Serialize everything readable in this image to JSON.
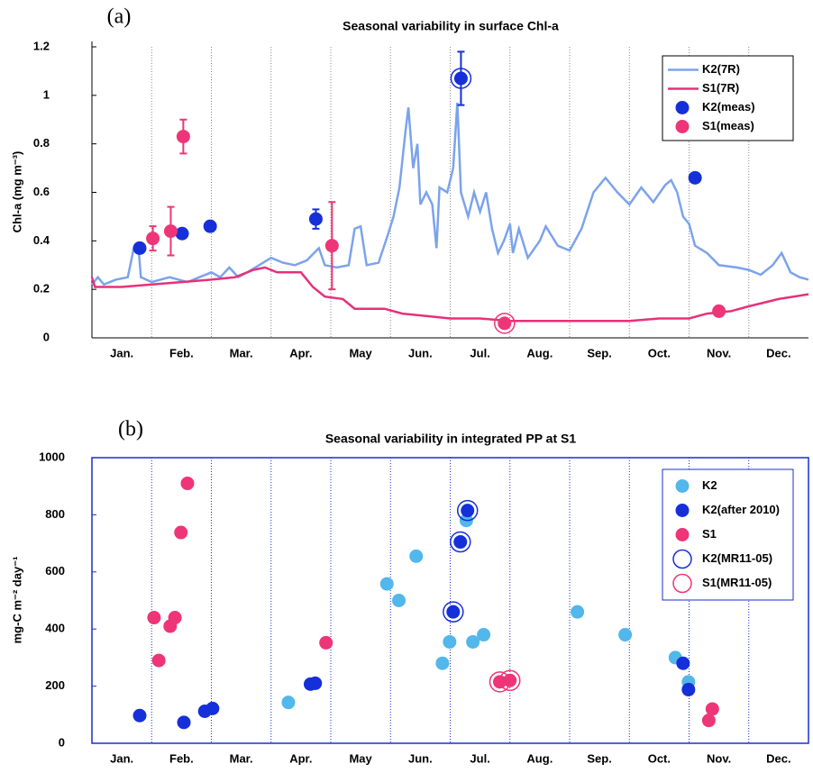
{
  "chart_data": [
    {
      "type": "line",
      "panel": "(a)",
      "title": "Seasonal variability in surface Chl-a",
      "ylabel": "Chl-a (mg m⁻³)",
      "categories": [
        "Jan.",
        "Feb.",
        "Mar.",
        "Apr.",
        "May",
        "Jun.",
        "Jul.",
        "Aug.",
        "Sep.",
        "Oct.",
        "Nov.",
        "Dec."
      ],
      "xlim": [
        0,
        12
      ],
      "ylim": [
        0,
        1.2
      ],
      "yticks": [
        0,
        0.2,
        0.4,
        0.6,
        0.8,
        1,
        1.2
      ],
      "grid": true,
      "frame": false,
      "frame_color": "#000000",
      "grid_color": "#888888",
      "legend": "upper right",
      "series": [
        {
          "name": "K2(7R)",
          "type": "line",
          "color": "#7ba3ec",
          "x": [
            0,
            0.1,
            0.2,
            0.4,
            0.6,
            0.7,
            0.78,
            0.82,
            1,
            1.3,
            1.6,
            1.8,
            2,
            2.15,
            2.3,
            2.45,
            2.6,
            2.8,
            3,
            3.2,
            3.4,
            3.6,
            3.8,
            3.9,
            4.1,
            4.3,
            4.4,
            4.5,
            4.6,
            4.8,
            4.95,
            5.05,
            5.15,
            5.25,
            5.3,
            5.38,
            5.45,
            5.5,
            5.6,
            5.7,
            5.77,
            5.82,
            5.95,
            6.05,
            6.12,
            6.18,
            6.3,
            6.4,
            6.5,
            6.6,
            6.7,
            6.8,
            6.9,
            7,
            7.05,
            7.15,
            7.3,
            7.5,
            7.6,
            7.8,
            8,
            8.2,
            8.4,
            8.6,
            8.8,
            9,
            9.2,
            9.4,
            9.6,
            9.7,
            9.8,
            9.9,
            10,
            10.1,
            10.3,
            10.5,
            10.8,
            11,
            11.2,
            11.4,
            11.55,
            11.7,
            11.85,
            12
          ],
          "values": [
            0.22,
            0.25,
            0.22,
            0.24,
            0.25,
            0.37,
            0.37,
            0.25,
            0.23,
            0.25,
            0.23,
            0.25,
            0.27,
            0.25,
            0.29,
            0.25,
            0.27,
            0.3,
            0.33,
            0.31,
            0.3,
            0.32,
            0.37,
            0.3,
            0.29,
            0.3,
            0.45,
            0.46,
            0.3,
            0.31,
            0.42,
            0.5,
            0.62,
            0.85,
            0.95,
            0.7,
            0.8,
            0.55,
            0.6,
            0.55,
            0.37,
            0.62,
            0.6,
            0.7,
            0.97,
            0.6,
            0.5,
            0.6,
            0.52,
            0.6,
            0.45,
            0.35,
            0.4,
            0.47,
            0.35,
            0.45,
            0.33,
            0.4,
            0.46,
            0.38,
            0.36,
            0.45,
            0.6,
            0.66,
            0.6,
            0.55,
            0.62,
            0.56,
            0.63,
            0.65,
            0.6,
            0.5,
            0.47,
            0.38,
            0.35,
            0.3,
            0.29,
            0.28,
            0.26,
            0.3,
            0.35,
            0.27,
            0.25,
            0.24
          ]
        },
        {
          "name": "S1(7R)",
          "type": "line",
          "color": "#e8307a",
          "x": [
            0,
            0.05,
            0.5,
            1,
            1.5,
            2,
            2.4,
            2.7,
            2.9,
            3.1,
            3.5,
            3.7,
            3.9,
            4.2,
            4.4,
            4.9,
            5.2,
            5.6,
            6,
            6.5,
            7,
            8,
            9,
            9.5,
            10,
            10.3,
            10.7,
            11,
            11.5,
            12
          ],
          "values": [
            0.25,
            0.21,
            0.21,
            0.22,
            0.23,
            0.24,
            0.25,
            0.28,
            0.29,
            0.27,
            0.27,
            0.21,
            0.17,
            0.16,
            0.12,
            0.12,
            0.1,
            0.09,
            0.08,
            0.08,
            0.07,
            0.07,
            0.07,
            0.08,
            0.08,
            0.1,
            0.11,
            0.13,
            0.16,
            0.18
          ]
        },
        {
          "name": "K2(meas)",
          "type": "scatter",
          "color": "#1530d8",
          "x": [
            0.8,
            1.51,
            1.98,
            3.75,
            6.18,
            10.1
          ],
          "values": [
            0.37,
            0.43,
            0.46,
            0.49,
            1.07,
            0.66
          ],
          "errors": [
            null,
            null,
            null,
            0.04,
            0.11,
            null
          ],
          "circled": [
            false,
            false,
            false,
            false,
            true,
            false
          ]
        },
        {
          "name": "S1(meas)",
          "type": "scatter",
          "color": "#ee3577",
          "x": [
            1.02,
            1.32,
            1.53,
            4.02,
            6.91,
            10.5
          ],
          "values": [
            0.41,
            0.44,
            0.83,
            0.38,
            0.06,
            0.11
          ],
          "errors": [
            0.05,
            0.1,
            0.07,
            0.18,
            null,
            null
          ],
          "circled": [
            false,
            false,
            false,
            false,
            true,
            false
          ]
        }
      ]
    },
    {
      "type": "scatter",
      "panel": "(b)",
      "title": "Seasonal variability in integrated PP at S1",
      "ylabel": "mg-C m⁻² day⁻¹",
      "categories": [
        "Jan.",
        "Feb.",
        "Mar.",
        "Apr.",
        "May",
        "Jun.",
        "Jul.",
        "Aug.",
        "Sep.",
        "Oct.",
        "Nov.",
        "Dec."
      ],
      "xlim": [
        0,
        12
      ],
      "ylim": [
        0,
        1000
      ],
      "yticks": [
        0,
        200,
        400,
        600,
        800,
        1000
      ],
      "grid": true,
      "frame": true,
      "frame_color": "#1a2fd0",
      "grid_color": "#1a2fd0",
      "legend": "upper right",
      "series": [
        {
          "name": "K2",
          "type": "scatter",
          "color": "#52b7ea",
          "x": [
            3.29,
            4.94,
            5.14,
            5.43,
            5.87,
            5.99,
            6.27,
            6.38,
            6.56,
            8.13,
            8.93,
            9.77,
            9.99
          ],
          "values": [
            143,
            558,
            500,
            655,
            280,
            355,
            780,
            355,
            380,
            460,
            380,
            300,
            215
          ]
        },
        {
          "name": "K2(after 2010)",
          "type": "scatter",
          "color": "#1530d8",
          "x": [
            0.8,
            1.54,
            1.89,
            2.02,
            3.66,
            3.74,
            6.05,
            6.17,
            6.29,
            9.9,
            9.99
          ],
          "values": [
            97,
            73,
            112,
            122,
            207,
            210,
            460,
            705,
            815,
            280,
            188
          ]
        },
        {
          "name": "S1",
          "type": "scatter",
          "color": "#ee3577",
          "x": [
            1.04,
            1.12,
            1.31,
            1.39,
            1.49,
            1.6,
            3.92,
            6.83,
            7,
            10.39,
            10.33
          ],
          "values": [
            440,
            290,
            410,
            440,
            738,
            910,
            352,
            215,
            220,
            120,
            80
          ]
        },
        {
          "name": "K2(MR11-05)",
          "type": "ring",
          "color": "#1530d8",
          "x": [
            6.05,
            6.17,
            6.29
          ],
          "values": [
            460,
            705,
            815
          ]
        },
        {
          "name": "S1(MR11-05)",
          "type": "ring",
          "color": "#ee3577",
          "x": [
            6.83,
            7
          ],
          "values": [
            215,
            220
          ]
        }
      ]
    }
  ]
}
